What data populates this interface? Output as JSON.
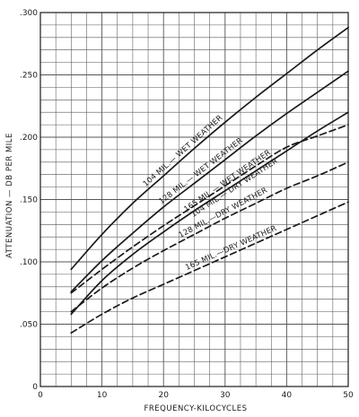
{
  "chart_data": {
    "type": "line",
    "title": "",
    "xlabel": "FREQUENCY-KILOCYCLES",
    "ylabel": "ATTENUATION — DB PER MILE",
    "xlim": [
      0,
      50
    ],
    "ylim": [
      0,
      0.3
    ],
    "grid": true,
    "x_ticks": [
      0,
      10,
      20,
      30,
      40,
      50
    ],
    "x_tick_labels": [
      "0",
      "10",
      "20",
      "30",
      "40",
      "50"
    ],
    "y_ticks": [
      0,
      0.05,
      0.1,
      0.15,
      0.2,
      0.25,
      0.3
    ],
    "y_tick_labels": [
      "0",
      ".050",
      ".100",
      ".150",
      ".200",
      ".250",
      ".300"
    ],
    "series": [
      {
        "name": "104 MIL.— WET WEATHER",
        "style": "solid",
        "x": [
          5,
          10,
          15,
          20,
          25,
          30,
          35,
          40,
          45,
          50
        ],
        "y": [
          0.094,
          0.122,
          0.147,
          0.169,
          0.191,
          0.212,
          0.232,
          0.251,
          0.27,
          0.288
        ]
      },
      {
        "name": "128 MIL.— WET WEATHER",
        "style": "solid",
        "x": [
          5,
          10,
          15,
          20,
          25,
          30,
          35,
          40,
          45,
          50
        ],
        "y": [
          0.076,
          0.101,
          0.123,
          0.144,
          0.163,
          0.182,
          0.201,
          0.219,
          0.236,
          0.253
        ]
      },
      {
        "name": "165 MIL.— WET WEATHER",
        "style": "solid",
        "x": [
          5,
          10,
          15,
          20,
          25,
          30,
          35,
          40,
          45,
          50
        ],
        "y": [
          0.058,
          0.085,
          0.106,
          0.124,
          0.141,
          0.157,
          0.173,
          0.189,
          0.205,
          0.22
        ]
      },
      {
        "name": "104 MIL.— DRY WEATHER",
        "style": "dashed",
        "x": [
          5,
          10,
          15,
          20,
          25,
          30,
          35,
          40,
          45,
          50
        ],
        "y": [
          0.075,
          0.094,
          0.112,
          0.129,
          0.145,
          0.161,
          0.177,
          0.192,
          0.201,
          0.21
        ]
      },
      {
        "name": "128 MIL.—DRY WEATHER",
        "style": "dashed",
        "x": [
          5,
          10,
          15,
          20,
          25,
          30,
          35,
          40,
          45,
          50
        ],
        "y": [
          0.06,
          0.079,
          0.095,
          0.109,
          0.122,
          0.135,
          0.147,
          0.159,
          0.169,
          0.18
        ]
      },
      {
        "name": "165 MIL.—DRY WEATHER",
        "style": "dashed",
        "x": [
          5,
          10,
          15,
          20,
          25,
          30,
          35,
          40,
          45,
          50
        ],
        "y": [
          0.043,
          0.058,
          0.071,
          0.082,
          0.093,
          0.104,
          0.115,
          0.126,
          0.137,
          0.148
        ]
      }
    ],
    "line_color": "#1a1a1a",
    "grid_color": "#555555"
  }
}
